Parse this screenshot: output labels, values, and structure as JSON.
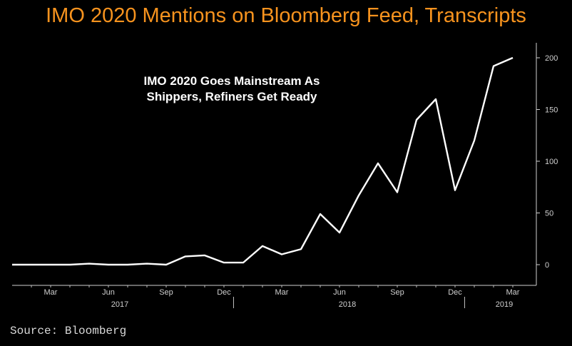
{
  "title": "IMO 2020 Mentions on Bloomberg Feed, Transcripts",
  "source": "Source: Bloomberg",
  "chart_data": {
    "type": "line",
    "title": "IMO 2020 Mentions on Bloomberg Feed, Transcripts",
    "annotation": [
      "IMO 2020 Goes Mainstream As",
      "Shippers, Refiners Get Ready"
    ],
    "x": [
      "2017-01",
      "2017-02",
      "2017-03",
      "2017-04",
      "2017-05",
      "2017-06",
      "2017-07",
      "2017-08",
      "2017-09",
      "2017-10",
      "2017-11",
      "2017-12",
      "2018-01",
      "2018-02",
      "2018-03",
      "2018-04",
      "2018-05",
      "2018-06",
      "2018-07",
      "2018-08",
      "2018-09",
      "2018-10",
      "2018-11",
      "2018-12",
      "2019-01",
      "2019-02",
      "2019-03"
    ],
    "series": [
      {
        "values": [
          0,
          0,
          0,
          0,
          1,
          0,
          0,
          1,
          0,
          8,
          9,
          2,
          2,
          18,
          10,
          15,
          49,
          31,
          67,
          98,
          70,
          140,
          160,
          72,
          120,
          192,
          200
        ]
      }
    ],
    "x_tick_labels": [
      "Mar",
      "Jun",
      "Sep",
      "Dec",
      "Mar",
      "Jun",
      "Sep",
      "Dec",
      "Mar"
    ],
    "year_labels": [
      "2017",
      "2018",
      "2019"
    ],
    "y_ticks": [
      0,
      50,
      100,
      150,
      200
    ],
    "ylim": [
      -20,
      215
    ],
    "line_color": "#ffffff",
    "title_color": "#f7931e",
    "background": "#000000",
    "grid": false
  }
}
